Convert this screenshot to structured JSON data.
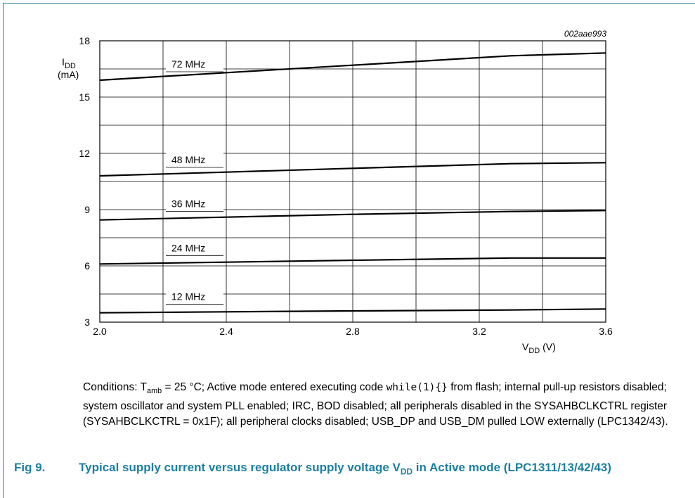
{
  "figure": {
    "code": "002aae993",
    "number": "Fig 9.",
    "title_pre": "Typical supply current versus regulator supply voltage V",
    "title_sub": "DD",
    "title_post": " in Active mode (LPC1311/13/42/43)"
  },
  "conditions": {
    "p1": "Conditions: T",
    "p1_sub": "amb",
    "p2": " = 25 °C; Active mode entered executing code ",
    "code": "while(1){}",
    "p3": " from flash; internal pull-up resistors disabled; system oscillator and system PLL enabled; IRC, BOD disabled; all peripherals disabled in the SYSAHBCLKCTRL register (SYSAHBCLKCTRL = 0x1F); all peripheral clocks disabled; USB_DP and USB_DM pulled LOW externally (LPC1342/43)."
  },
  "chart_data": {
    "type": "line",
    "ylabel": {
      "symbol": "I",
      "sub": "DD",
      "unit": "(mA)"
    },
    "xlabel": {
      "symbol": "V",
      "sub": "DD",
      "unit": " (V)"
    },
    "xlim": [
      2.0,
      3.6
    ],
    "ylim": [
      3,
      18
    ],
    "xticks": [
      "2.0",
      "2.4",
      "2.8",
      "3.2",
      "3.6"
    ],
    "yticks": [
      "3",
      "6",
      "9",
      "12",
      "15",
      "18"
    ],
    "grid": true,
    "x": [
      2.0,
      2.4,
      2.8,
      3.3,
      3.6
    ],
    "series": [
      {
        "name": "72 MHz",
        "values": [
          15.9,
          16.3,
          16.7,
          17.2,
          17.35
        ]
      },
      {
        "name": "48 MHz",
        "values": [
          10.8,
          11.0,
          11.2,
          11.45,
          11.5
        ]
      },
      {
        "name": "36 MHz",
        "values": [
          8.45,
          8.6,
          8.75,
          8.9,
          8.95
        ]
      },
      {
        "name": "24 MHz",
        "values": [
          6.1,
          6.2,
          6.3,
          6.42,
          6.42
        ]
      },
      {
        "name": "12 MHz",
        "values": [
          3.5,
          3.55,
          3.6,
          3.65,
          3.7
        ]
      }
    ]
  }
}
